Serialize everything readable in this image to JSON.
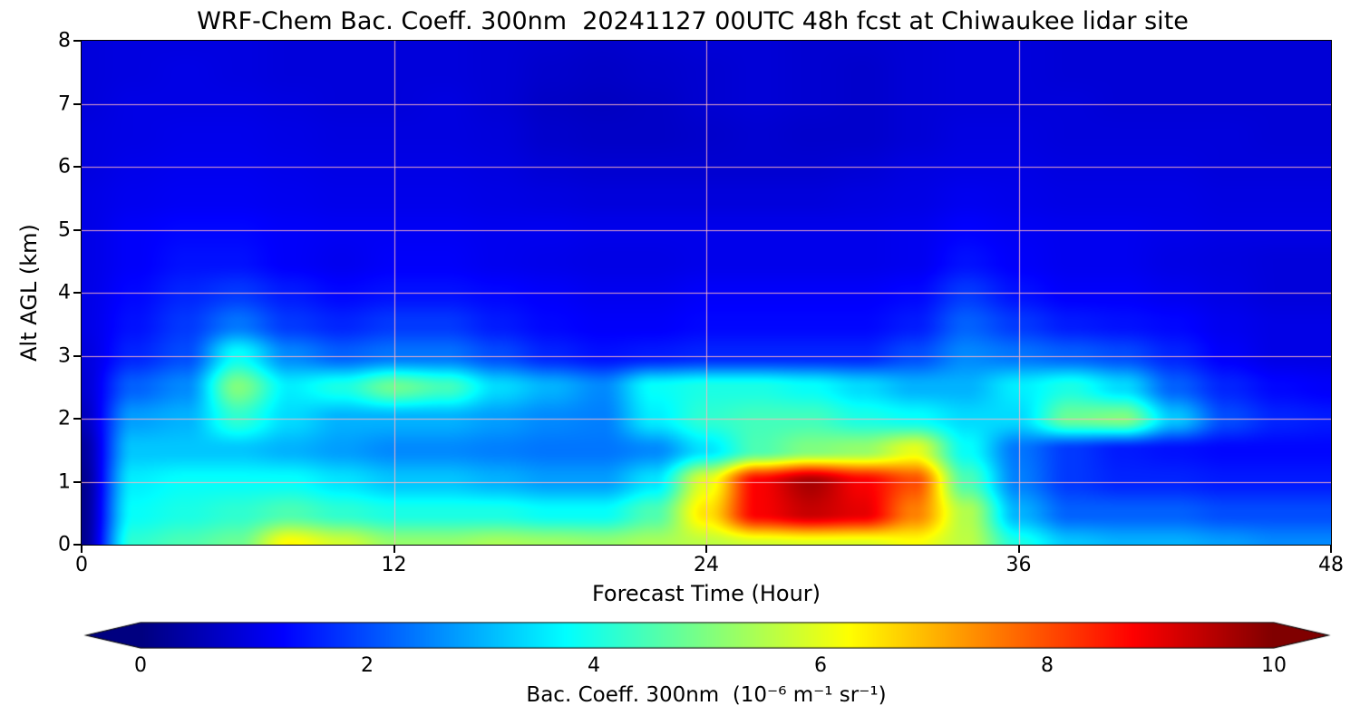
{
  "chart_data": {
    "type": "heatmap",
    "title": "WRF-Chem Bac. Coeff. 300nm  20241127 00UTC 48h fcst at Chiwaukee lidar site",
    "xlabel": "Forecast Time (Hour)",
    "ylabel": "Alt AGL (km)",
    "xlim": [
      0,
      48
    ],
    "ylim": [
      0,
      8
    ],
    "xticks": [
      0,
      12,
      24,
      36,
      48
    ],
    "yticks": [
      0,
      1,
      2,
      3,
      4,
      5,
      6,
      7,
      8
    ],
    "grid_on": true,
    "grid_color": "#ffb6c1",
    "colormap": "jet",
    "colorbar": {
      "label": "Bac. Coeff. 300nm  (10⁻⁶ m⁻¹ sr⁻¹)",
      "ticks": [
        0,
        2,
        4,
        6,
        8,
        10
      ],
      "vmin": 0,
      "vmax": 10,
      "extend": "both"
    },
    "x": [
      0,
      2,
      4,
      6,
      8,
      10,
      12,
      14,
      16,
      18,
      20,
      22,
      24,
      26,
      28,
      30,
      32,
      34,
      36,
      38,
      40,
      42,
      44,
      46,
      48
    ],
    "y": [
      0,
      0.5,
      1,
      1.5,
      2,
      2.5,
      3,
      3.5,
      4,
      4.5,
      5,
      5.5,
      6,
      6.5,
      7,
      7.5,
      8
    ],
    "values": [
      [
        0.15,
        4.2,
        4.5,
        4.8,
        6.3,
        5.8,
        5.2,
        5.2,
        5.4,
        5.3,
        5.2,
        5.4,
        5.6,
        5.8,
        5.9,
        5.9,
        6.2,
        5.6,
        4.0,
        3.2,
        3.0,
        3.0,
        2.8,
        2.6,
        2.6
      ],
      [
        0.15,
        3.8,
        4.0,
        4.2,
        4.5,
        4.2,
        4.0,
        4.0,
        4.0,
        3.8,
        3.8,
        4.5,
        6.5,
        8.8,
        9.3,
        9.0,
        7.5,
        5.5,
        3.0,
        2.2,
        2.2,
        2.2,
        2.0,
        2.0,
        2.0
      ],
      [
        0.15,
        3.6,
        3.8,
        3.8,
        3.8,
        3.5,
        3.2,
        3.2,
        3.0,
        2.8,
        2.8,
        3.5,
        6.0,
        8.8,
        9.6,
        8.8,
        8.0,
        4.5,
        2.5,
        1.8,
        1.6,
        1.6,
        1.5,
        1.5,
        1.5
      ],
      [
        0.3,
        3.2,
        3.2,
        3.2,
        3.0,
        2.8,
        2.6,
        2.6,
        2.5,
        2.4,
        2.4,
        2.6,
        3.5,
        4.5,
        5.0,
        5.2,
        6.0,
        3.8,
        2.4,
        1.8,
        1.5,
        1.4,
        1.3,
        1.3,
        1.3
      ],
      [
        0.6,
        2.8,
        3.0,
        4.2,
        3.4,
        3.0,
        3.0,
        3.0,
        2.8,
        2.6,
        2.5,
        3.6,
        4.2,
        4.4,
        4.4,
        4.0,
        3.8,
        3.4,
        3.4,
        4.8,
        5.0,
        3.2,
        2.0,
        1.6,
        1.5
      ],
      [
        0.8,
        2.2,
        2.6,
        5.0,
        3.6,
        4.0,
        4.8,
        4.4,
        3.4,
        3.0,
        2.6,
        3.8,
        4.0,
        4.0,
        3.8,
        3.4,
        3.0,
        3.0,
        3.6,
        4.0,
        3.4,
        2.2,
        1.6,
        1.3,
        1.2
      ],
      [
        0.9,
        1.6,
        2.0,
        3.8,
        2.6,
        2.2,
        2.4,
        2.4,
        2.0,
        1.6,
        1.4,
        1.5,
        1.6,
        1.6,
        1.6,
        1.6,
        2.0,
        2.6,
        2.4,
        2.2,
        2.0,
        1.6,
        1.2,
        1.0,
        1.0
      ],
      [
        1.0,
        1.4,
        1.8,
        2.4,
        1.8,
        1.6,
        1.8,
        1.8,
        1.5,
        1.3,
        1.2,
        1.2,
        1.3,
        1.3,
        1.3,
        1.3,
        1.5,
        2.2,
        1.8,
        1.5,
        1.4,
        1.3,
        1.1,
        1.0,
        1.0
      ],
      [
        1.0,
        1.3,
        1.6,
        1.8,
        1.5,
        1.3,
        1.4,
        1.4,
        1.3,
        1.2,
        1.1,
        1.1,
        1.2,
        1.2,
        1.2,
        1.2,
        1.3,
        1.8,
        1.4,
        1.2,
        1.2,
        1.1,
        1.0,
        0.9,
        0.9
      ],
      [
        1.0,
        1.2,
        1.4,
        1.4,
        1.2,
        1.1,
        1.2,
        1.2,
        1.1,
        1.05,
        1.0,
        1.0,
        1.05,
        1.05,
        1.05,
        1.05,
        1.1,
        1.4,
        1.2,
        1.1,
        1.1,
        1.0,
        0.95,
        0.9,
        0.9
      ],
      [
        1.0,
        1.2,
        1.3,
        1.3,
        1.2,
        1.15,
        1.15,
        1.15,
        1.1,
        1.1,
        1.05,
        1.05,
        1.05,
        1.05,
        1.05,
        1.05,
        1.1,
        1.25,
        1.15,
        1.1,
        1.1,
        1.05,
        1.0,
        1.0,
        1.0
      ],
      [
        1.0,
        1.1,
        1.15,
        1.15,
        1.1,
        1.05,
        1.05,
        1.05,
        1.0,
        0.95,
        0.9,
        0.9,
        0.9,
        0.9,
        0.9,
        0.95,
        1.0,
        1.1,
        1.05,
        1.0,
        1.0,
        1.0,
        0.95,
        0.95,
        0.95
      ],
      [
        0.95,
        1.05,
        1.1,
        1.1,
        1.05,
        1.0,
        1.0,
        1.0,
        0.95,
        0.85,
        0.8,
        0.8,
        0.8,
        0.8,
        0.8,
        0.85,
        0.95,
        1.0,
        1.0,
        0.95,
        0.95,
        0.95,
        0.9,
        0.9,
        0.9
      ],
      [
        0.95,
        1.0,
        1.05,
        1.05,
        1.0,
        0.95,
        0.95,
        0.95,
        0.9,
        0.75,
        0.7,
        0.7,
        0.75,
        0.8,
        0.75,
        0.75,
        0.85,
        0.95,
        0.95,
        0.9,
        0.9,
        0.9,
        0.9,
        0.85,
        0.85
      ],
      [
        0.9,
        1.0,
        1.0,
        1.0,
        0.95,
        0.9,
        0.9,
        0.95,
        0.85,
        0.7,
        0.65,
        0.7,
        0.8,
        0.85,
        0.8,
        0.75,
        0.85,
        0.9,
        0.9,
        0.9,
        0.85,
        0.85,
        0.85,
        0.85,
        0.85
      ],
      [
        0.9,
        0.95,
        1.0,
        0.95,
        0.9,
        0.9,
        0.9,
        0.9,
        0.85,
        0.75,
        0.7,
        0.75,
        0.8,
        0.85,
        0.8,
        0.75,
        0.85,
        0.9,
        0.9,
        0.85,
        0.85,
        0.85,
        0.85,
        0.85,
        0.85
      ],
      [
        0.9,
        0.95,
        0.95,
        0.95,
        0.9,
        0.9,
        0.9,
        0.9,
        0.85,
        0.8,
        0.75,
        0.8,
        0.85,
        0.85,
        0.8,
        0.8,
        0.85,
        0.9,
        0.9,
        0.85,
        0.85,
        0.85,
        0.85,
        0.85,
        0.85
      ]
    ]
  }
}
